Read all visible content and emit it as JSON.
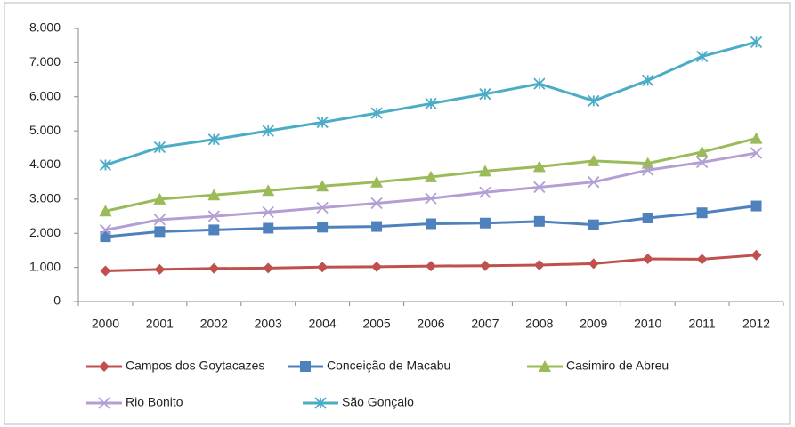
{
  "chart_data": {
    "type": "line",
    "categories": [
      "2000",
      "2001",
      "2002",
      "2003",
      "2004",
      "2005",
      "2006",
      "2007",
      "2008",
      "2009",
      "2010",
      "2011",
      "2012"
    ],
    "series": [
      {
        "name": "Campos dos Goytacazes",
        "color": "#c0504d",
        "marker": "diamond",
        "values": [
          900,
          940,
          970,
          980,
          1010,
          1020,
          1040,
          1050,
          1070,
          1110,
          1250,
          1240,
          1360
        ]
      },
      {
        "name": "Conceição de Macabu",
        "color": "#4f81bd",
        "marker": "square",
        "values": [
          1900,
          2050,
          2100,
          2150,
          2180,
          2200,
          2280,
          2300,
          2350,
          2250,
          2450,
          2600,
          2800
        ]
      },
      {
        "name": "Casimiro de Abreu",
        "color": "#9bbb59",
        "marker": "triangle",
        "values": [
          2650,
          3000,
          3120,
          3250,
          3380,
          3500,
          3650,
          3820,
          3950,
          4120,
          4050,
          4380,
          4780
        ]
      },
      {
        "name": "Rio Bonito",
        "color": "#b49fd4",
        "marker": "x",
        "values": [
          2100,
          2400,
          2500,
          2620,
          2750,
          2880,
          3020,
          3200,
          3350,
          3500,
          3850,
          4080,
          4350
        ]
      },
      {
        "name": "São Gonçalo",
        "color": "#4bacc6",
        "marker": "star",
        "values": [
          4000,
          4520,
          4750,
          5000,
          5250,
          5520,
          5800,
          6080,
          6380,
          5880,
          6480,
          7180,
          7600
        ]
      }
    ],
    "ylim": [
      0,
      8000
    ],
    "yticks": [
      0,
      {
        "value": 1000,
        "label": "1.000"
      },
      {
        "value": 2000,
        "label": "2.000"
      },
      {
        "value": 3000,
        "label": "3.000"
      },
      {
        "value": 4000,
        "label": "4.000"
      },
      {
        "value": 5000,
        "label": "5.000"
      },
      {
        "value": 6000,
        "label": "6.000"
      },
      {
        "value": 7000,
        "label": "7.000"
      },
      {
        "value": 8000,
        "label": "8.000"
      }
    ],
    "legend": "bottom"
  }
}
